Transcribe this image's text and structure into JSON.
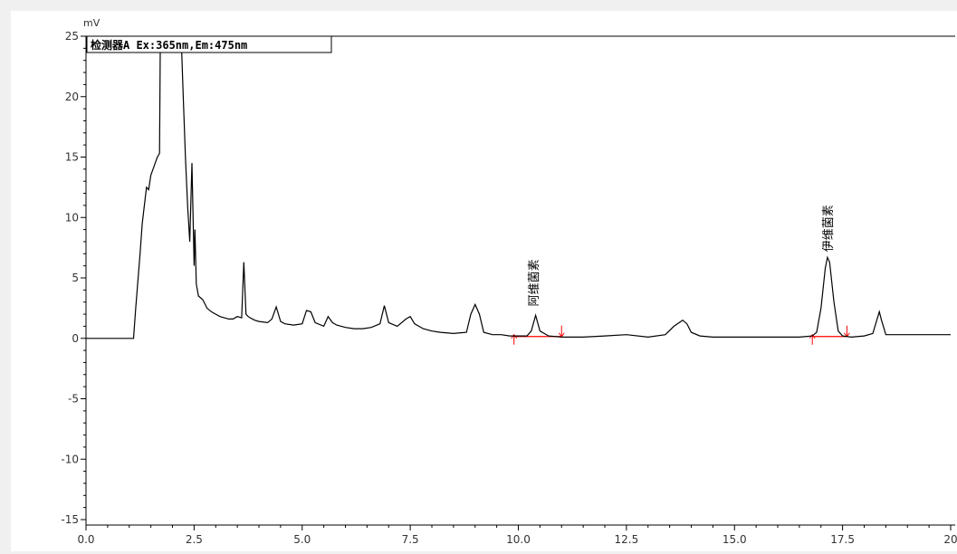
{
  "chart_data": {
    "type": "line",
    "title": "",
    "xlabel": "",
    "ylabel": "mV",
    "xlim": [
      0.0,
      20.0
    ],
    "ylim": [
      -15.0,
      25.0
    ],
    "x_ticks": [
      "0.0",
      "2.5",
      "5.0",
      "7.5",
      "10.0",
      "12.5",
      "15.0",
      "17.5",
      "20"
    ],
    "y_ticks": [
      "25",
      "20",
      "15",
      "10",
      "5",
      "0",
      "-5",
      "-10",
      "-15"
    ],
    "legend": "检测器A Ex:365nm,Em:475nm",
    "grid": false,
    "colors": {
      "trace": "#000000",
      "baseline": "#ff0000",
      "axis": "#000000"
    },
    "series": [
      {
        "x": [
          0.0,
          1.1,
          1.15,
          1.25,
          1.3,
          1.4,
          1.45,
          1.5,
          1.55,
          1.6,
          1.65,
          1.7,
          1.72,
          1.75,
          1.8,
          1.85,
          1.9,
          1.95,
          2.0,
          2.05,
          2.1,
          2.15,
          2.2,
          2.25,
          2.3,
          2.35,
          2.4,
          2.45,
          2.5,
          2.52,
          2.55,
          2.6,
          2.7,
          2.8,
          2.9,
          3.0,
          3.1,
          3.2,
          3.3,
          3.4,
          3.5,
          3.6,
          3.65,
          3.7,
          3.75,
          3.8,
          3.9,
          4.0,
          4.2,
          4.3,
          4.4,
          4.5,
          4.6,
          4.8,
          5.0,
          5.1,
          5.2,
          5.3,
          5.5,
          5.6,
          5.7,
          5.8,
          6.0,
          6.2,
          6.4,
          6.6,
          6.8,
          6.9,
          7.0,
          7.2,
          7.4,
          7.5,
          7.6,
          7.8,
          8.0,
          8.2,
          8.5,
          8.8,
          8.9,
          9.0,
          9.1,
          9.2,
          9.4,
          9.6,
          9.8,
          10.0,
          10.2,
          10.3,
          10.4,
          10.5,
          10.7,
          11.0,
          11.5,
          12.0,
          12.5,
          13.0,
          13.4,
          13.6,
          13.8,
          13.9,
          14.0,
          14.2,
          14.5,
          15.0,
          15.5,
          16.0,
          16.5,
          16.8,
          16.9,
          17.0,
          17.1,
          17.15,
          17.2,
          17.3,
          17.4,
          17.5,
          17.7,
          18.0,
          18.2,
          18.3,
          18.35,
          18.4,
          18.5,
          18.6,
          19.0,
          19.5,
          20.0
        ],
        "values": [
          0.0,
          0.0,
          2.5,
          7.0,
          9.5,
          12.5,
          12.3,
          13.5,
          14.0,
          14.5,
          15.0,
          15.3,
          25.0,
          25.0,
          25.0,
          25.0,
          25.0,
          25.0,
          25.0,
          25.0,
          25.0,
          25.0,
          25.0,
          20.0,
          15.0,
          11.0,
          8.0,
          14.5,
          6.0,
          9.0,
          4.5,
          3.5,
          3.2,
          2.5,
          2.2,
          2.0,
          1.8,
          1.7,
          1.6,
          1.6,
          1.8,
          1.7,
          6.3,
          2.0,
          1.8,
          1.7,
          1.5,
          1.4,
          1.3,
          1.6,
          2.6,
          1.4,
          1.2,
          1.1,
          1.2,
          2.3,
          2.2,
          1.3,
          1.0,
          1.8,
          1.3,
          1.1,
          0.9,
          0.8,
          0.8,
          0.9,
          1.2,
          2.7,
          1.3,
          1.0,
          1.6,
          1.8,
          1.2,
          0.8,
          0.6,
          0.5,
          0.4,
          0.5,
          2.0,
          2.8,
          2.0,
          0.5,
          0.3,
          0.3,
          0.2,
          0.2,
          0.2,
          0.6,
          1.9,
          0.6,
          0.2,
          0.1,
          0.1,
          0.2,
          0.3,
          0.1,
          0.3,
          1.0,
          1.5,
          1.2,
          0.5,
          0.2,
          0.1,
          0.1,
          0.1,
          0.1,
          0.1,
          0.2,
          0.5,
          2.5,
          5.8,
          6.7,
          6.3,
          3.0,
          0.6,
          0.2,
          0.1,
          0.2,
          0.4,
          1.6,
          2.2,
          1.5,
          0.3,
          0.3,
          0.3,
          0.3,
          0.3
        ]
      }
    ],
    "peaks": [
      {
        "name": "阿维菌素",
        "rt": 10.35,
        "height": 2.2,
        "start": 9.9,
        "end": 11.0
      },
      {
        "name": "伊维菌素",
        "rt": 17.15,
        "height": 6.7,
        "start": 16.8,
        "end": 17.6
      }
    ]
  }
}
